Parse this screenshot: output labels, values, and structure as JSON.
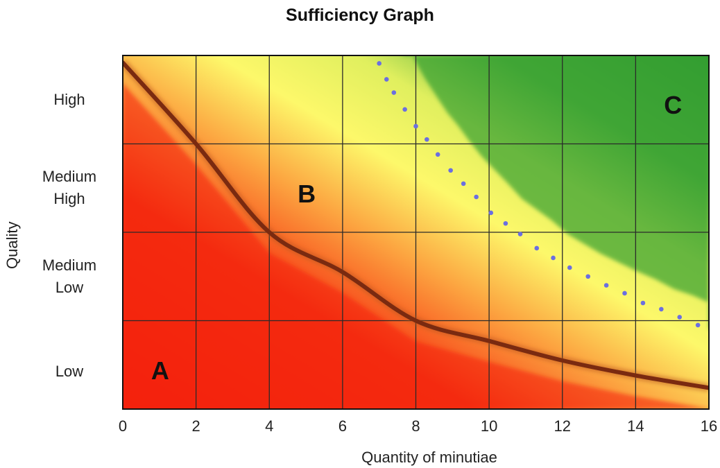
{
  "chart_data": {
    "type": "area",
    "title": "Sufficiency Graph",
    "xlabel": "Quantity of minutiae",
    "ylabel": "Quality",
    "xlim": [
      0,
      16
    ],
    "x_ticks": [
      "0",
      "2",
      "4",
      "6",
      "8",
      "10",
      "12",
      "14",
      "16"
    ],
    "y_categories": [
      "Low",
      "Medium\nLow",
      "Medium\nHigh",
      "High"
    ],
    "ylim": [
      0,
      4
    ],
    "grid": true,
    "region_labels": [
      {
        "label": "A",
        "x": 1,
        "y": 0.42
      },
      {
        "label": "B",
        "x": 5,
        "y": 2.42
      },
      {
        "label": "C",
        "x": 15,
        "y": 3.43
      }
    ],
    "series": [
      {
        "style": "solid-curve",
        "color": "#7a2a10",
        "points": [
          [
            0,
            3.92
          ],
          [
            2,
            3.0
          ],
          [
            4,
            2.0
          ],
          [
            6,
            1.55
          ],
          [
            8,
            1.0
          ],
          [
            10,
            0.77
          ],
          [
            12,
            0.55
          ],
          [
            14,
            0.38
          ],
          [
            16,
            0.24
          ]
        ]
      },
      {
        "style": "dotted-curve",
        "color": "#6b6fe0",
        "points": [
          [
            7.0,
            3.91
          ],
          [
            7.2,
            3.73
          ],
          [
            7.4,
            3.58
          ],
          [
            7.7,
            3.39
          ],
          [
            8.0,
            3.2
          ],
          [
            8.3,
            3.05
          ],
          [
            8.6,
            2.88
          ],
          [
            8.95,
            2.7
          ],
          [
            9.3,
            2.55
          ],
          [
            9.65,
            2.4
          ],
          [
            10.05,
            2.22
          ],
          [
            10.45,
            2.1
          ],
          [
            10.85,
            1.98
          ],
          [
            11.3,
            1.82
          ],
          [
            11.75,
            1.71
          ],
          [
            12.2,
            1.6
          ],
          [
            12.7,
            1.5
          ],
          [
            13.2,
            1.4
          ],
          [
            13.7,
            1.31
          ],
          [
            14.2,
            1.2
          ],
          [
            14.7,
            1.13
          ],
          [
            15.2,
            1.04
          ],
          [
            15.7,
            0.95
          ]
        ]
      }
    ],
    "colors": {
      "red": "#f4200c",
      "orange": "#f98a2a",
      "yellow": "#fdf86a",
      "green": "#35a032",
      "grid": "#2a2a2a"
    }
  }
}
